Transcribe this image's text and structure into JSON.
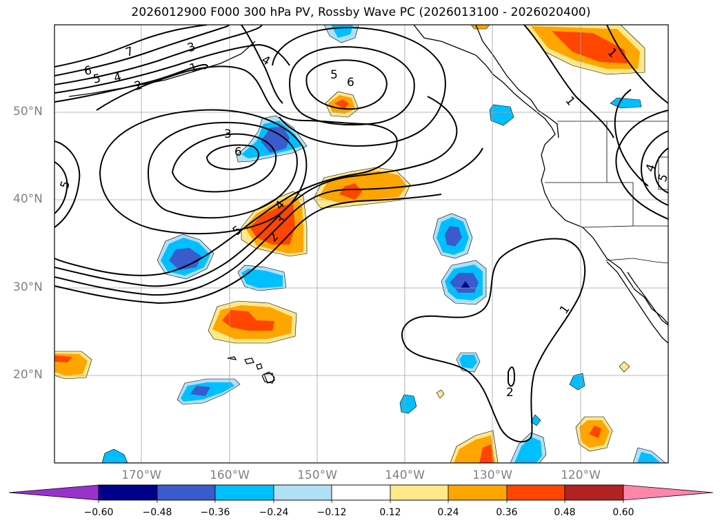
{
  "title": "2026012900 F000 300 hPa PV, Rossby Wave PC (2026013100 - 2026020400)",
  "map": {
    "lat_labels": [
      "50°N",
      "40°N",
      "30°N",
      "20°N"
    ],
    "lon_labels": [
      "170°W",
      "160°W",
      "150°W",
      "140°W",
      "130°W",
      "120°W"
    ],
    "contour_labels": [
      "7",
      "6",
      "5",
      "4",
      "3",
      "2",
      "1",
      "4",
      "5",
      "6",
      "3",
      "6",
      "5",
      "5",
      "4",
      "3",
      "2",
      "1",
      "1",
      "4",
      "5",
      "1",
      "2"
    ]
  },
  "colorbar": {
    "tick_labels": [
      "−0.60",
      "−0.48",
      "−0.36",
      "−0.24",
      "−0.12",
      "0.12",
      "0.24",
      "0.36",
      "0.48",
      "0.60"
    ],
    "colors": {
      "under": "#9932cc",
      "neg_060": "#00008b",
      "neg_048": "#3a5bcc",
      "neg_036": "#00bfff",
      "neg_024": "#b0e0f6",
      "zero": "#ffffff",
      "pos_012": "#ffe88a",
      "pos_024": "#ffa500",
      "pos_036": "#ff4500",
      "pos_048": "#b22222",
      "over": "#ff86aa"
    }
  }
}
